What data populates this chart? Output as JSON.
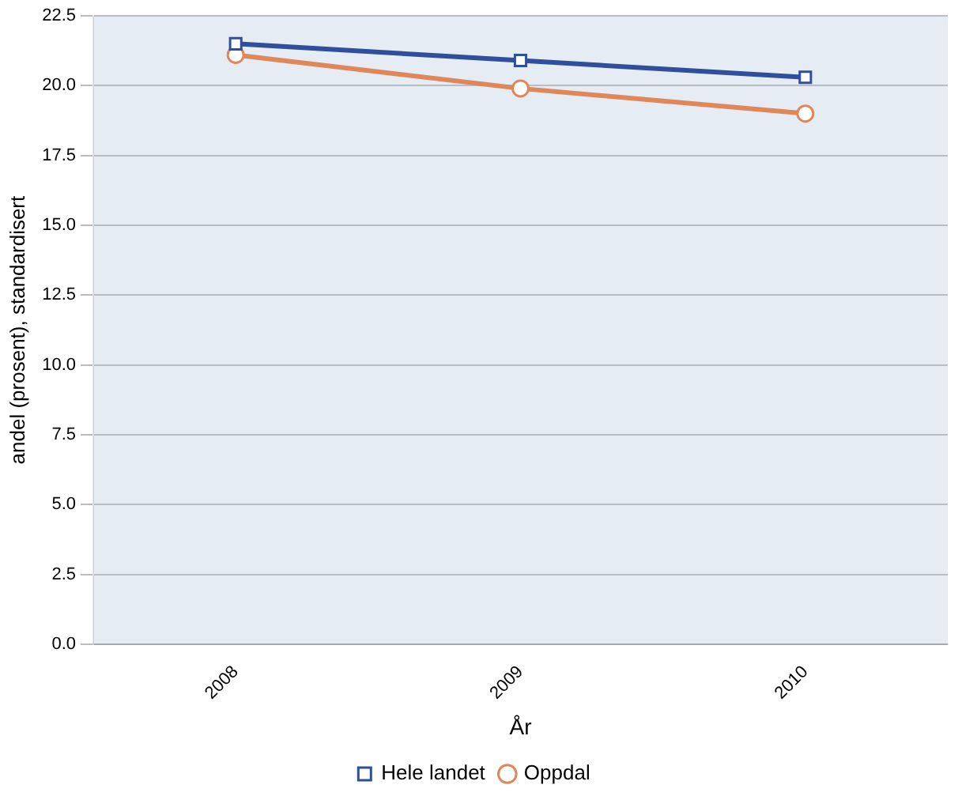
{
  "chart_data": {
    "type": "line",
    "xlabel": "År",
    "ylabel": "andel (prosent), standardisert",
    "categories": [
      "2008",
      "2009",
      "2010"
    ],
    "series": [
      {
        "name": "Hele landet",
        "color": "#2f4f9c",
        "values": [
          21.5,
          20.9,
          20.3
        ],
        "marker": "square"
      },
      {
        "name": "Oppdal",
        "color": "#e0875a",
        "values": [
          21.1,
          19.9,
          19.0
        ],
        "marker": "circle"
      }
    ],
    "ylim": [
      0,
      22.5
    ],
    "yticks": [
      {
        "value": 0,
        "label": "0.0"
      },
      2.5,
      {
        "value": 5,
        "label": "5.0"
      },
      7.5,
      {
        "value": 10,
        "label": "10.0"
      },
      12.5,
      {
        "value": 15,
        "label": "15.0"
      },
      17.5,
      {
        "value": 20,
        "label": "20.0"
      },
      22.5
    ],
    "grid": "y",
    "legend": "bottom"
  }
}
